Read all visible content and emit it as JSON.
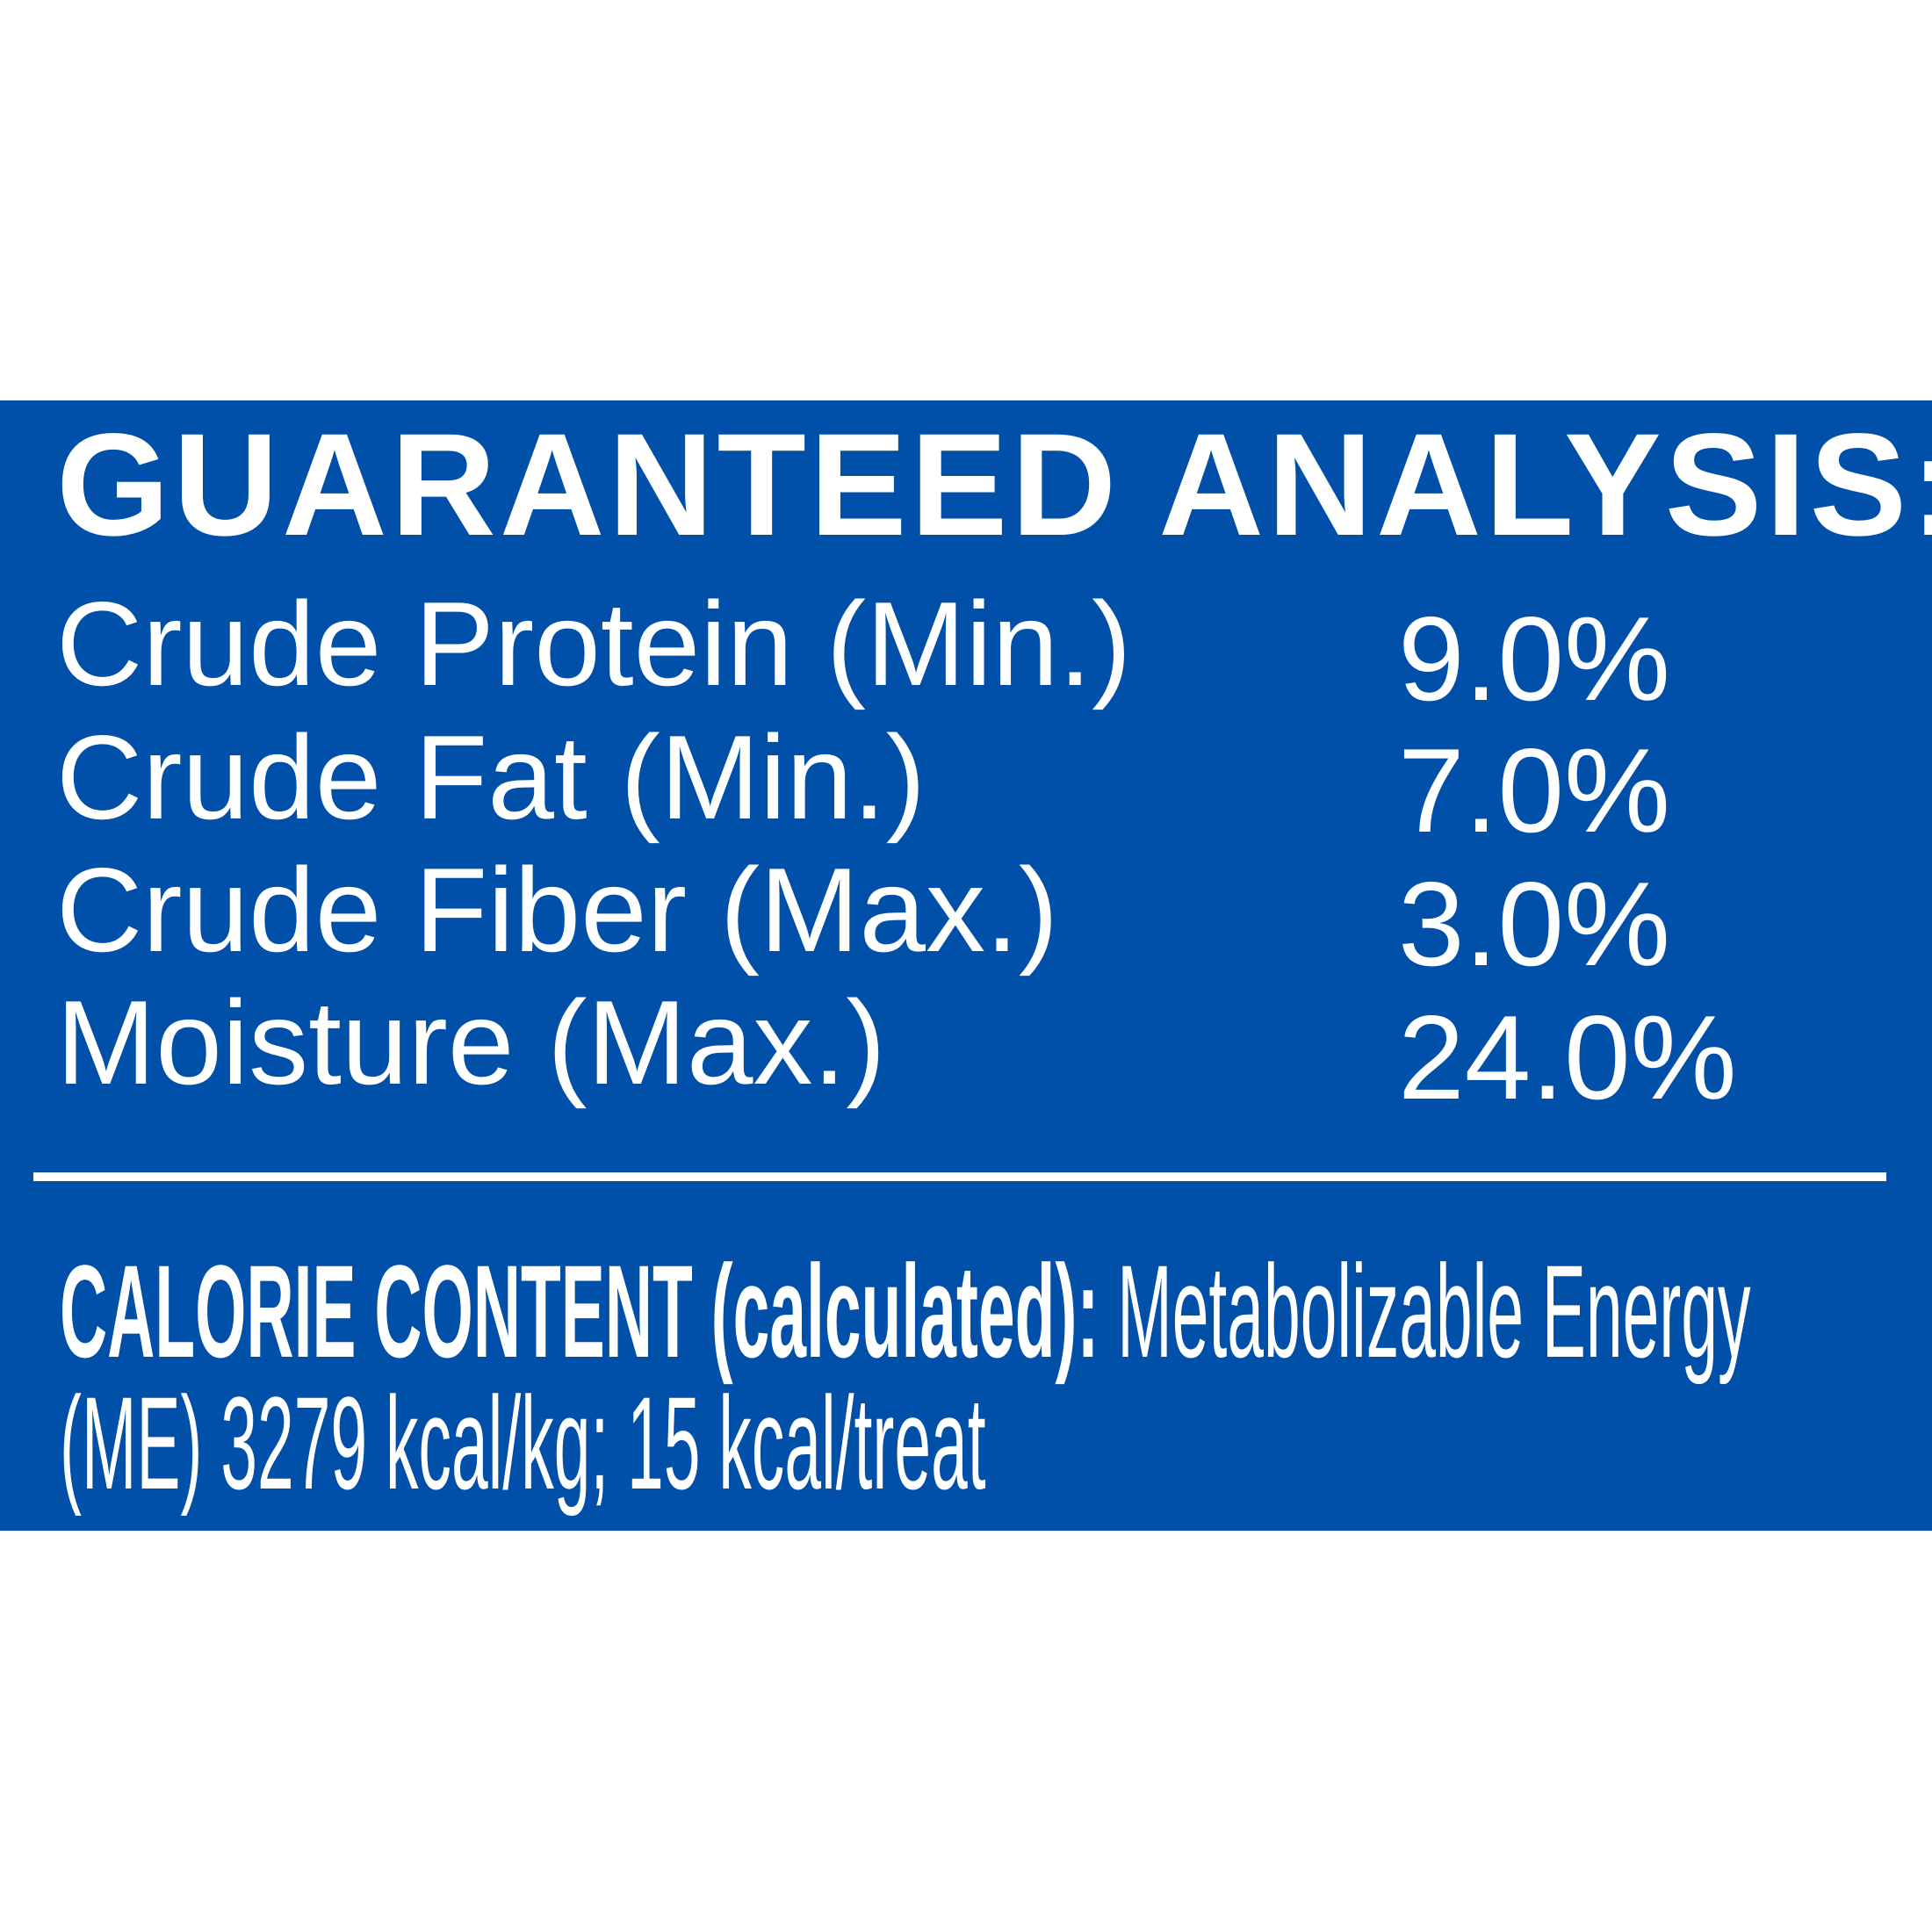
{
  "colors": {
    "background": "#ffffff",
    "panel": "#004fa9",
    "text": "#ffffff"
  },
  "title": "GUARANTEED ANALYSIS:",
  "rows": [
    {
      "label": "Crude Protein (Min.)",
      "value": "9.0%"
    },
    {
      "label": "Crude Fat (Min.)",
      "value": "7.0%"
    },
    {
      "label": "Crude Fiber (Max.)",
      "value": "3.0%"
    },
    {
      "label": "Moisture (Max.)",
      "value": "24.0%"
    }
  ],
  "calorie": {
    "heading": "CALORIE CONTENT (calculated):",
    "line1_rest": " Metabolizable Energy",
    "line2": "(ME) 3279 kcal/kg; 15 kcal/treat"
  }
}
